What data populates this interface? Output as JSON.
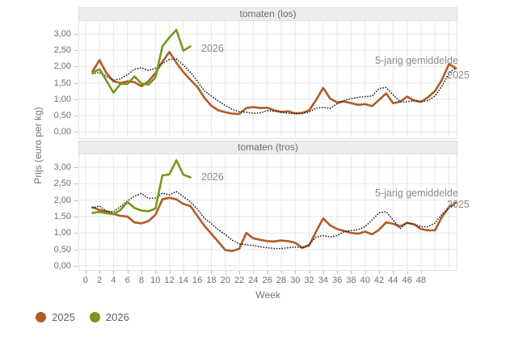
{
  "y_axis_title": "Prijs (euro per kg)",
  "x_axis_title": "Week",
  "legend": {
    "items": [
      {
        "label": "2025",
        "color": "#b05c26"
      },
      {
        "label": "2026",
        "color": "#76981c"
      }
    ]
  },
  "chart_data": [
    {
      "type": "line",
      "title": "tomaten (los)",
      "xlabel": "Week",
      "ylabel": "Prijs (euro per kg)",
      "xlim": [
        -0.9,
        53.1
      ],
      "ylim": [
        -0.17,
        3.4
      ],
      "grid": true,
      "grid_color": "#e8e8e8",
      "x_grid": {
        "start": 0,
        "end": 52,
        "step": 2
      },
      "y_grid": {
        "start": 0,
        "end": 3,
        "step": 0.5
      },
      "y_ticks": [
        {
          "value": 0,
          "label": "0,00"
        },
        {
          "value": 0.5,
          "label": "0,50"
        },
        {
          "value": 1,
          "label": "1,00"
        },
        {
          "value": 1.5,
          "label": "1,50"
        },
        {
          "value": 2,
          "label": "2,00"
        },
        {
          "value": 2.5,
          "label": "2,50"
        },
        {
          "value": 3,
          "label": "3,00"
        }
      ],
      "x_ticks": [],
      "annotations": {
        "avg": "5-jarig gemiddelde",
        "y2025": "2025",
        "y2026": "2026"
      },
      "series": [
        {
          "name": "2025",
          "color": "#b05c26",
          "width": 2.6,
          "x_start": 1,
          "values": [
            1.85,
            2.2,
            1.8,
            1.55,
            1.5,
            1.55,
            1.52,
            1.4,
            1.55,
            1.8,
            2.15,
            2.45,
            2.12,
            1.83,
            1.6,
            1.38,
            1.05,
            0.8,
            0.66,
            0.6,
            0.56,
            0.55,
            0.73,
            0.76,
            0.73,
            0.74,
            0.66,
            0.61,
            0.63,
            0.57,
            0.58,
            0.66,
            0.98,
            1.35,
            1.02,
            0.9,
            0.93,
            0.88,
            0.83,
            0.85,
            0.79,
            0.98,
            1.18,
            0.88,
            0.92,
            1.08,
            0.96,
            0.92,
            1.06,
            1.25,
            1.6,
            2.08,
            1.95
          ]
        },
        {
          "name": "5-jarig gemiddelde",
          "color": "#161616",
          "width": 1.6,
          "dash": "0.2 3.1",
          "x_start": 1,
          "values": [
            1.78,
            1.82,
            1.7,
            1.58,
            1.63,
            1.75,
            1.92,
            1.97,
            1.88,
            1.95,
            2.1,
            2.22,
            2.24,
            2.05,
            1.83,
            1.55,
            1.26,
            1.1,
            0.94,
            0.81,
            0.69,
            0.62,
            0.6,
            0.57,
            0.58,
            0.65,
            0.63,
            0.6,
            0.57,
            0.56,
            0.56,
            0.61,
            0.73,
            0.75,
            0.72,
            0.86,
            0.96,
            1.02,
            1.06,
            1.08,
            1.1,
            1.33,
            1.36,
            1.14,
            0.92,
            0.92,
            0.96,
            0.92,
            0.96,
            1.1,
            1.4,
            1.8,
            1.97
          ]
        },
        {
          "name": "2026",
          "color": "#76981c",
          "width": 2.6,
          "x_start": 1,
          "values": [
            1.82,
            1.92,
            1.57,
            1.2,
            1.47,
            1.47,
            1.7,
            1.48,
            1.45,
            1.67,
            2.62,
            2.9,
            3.13,
            2.49,
            2.62
          ]
        }
      ]
    },
    {
      "type": "line",
      "title": "tomaten (tros)",
      "xlabel": "Week",
      "ylabel": "Prijs (euro per kg)",
      "xlim": [
        -0.9,
        53.1
      ],
      "ylim": [
        -0.1,
        3.39
      ],
      "grid": true,
      "grid_color": "#e8e8e8",
      "x_grid": {
        "start": 0,
        "end": 52,
        "step": 2
      },
      "y_grid": {
        "start": 0,
        "end": 3,
        "step": 0.5
      },
      "y_ticks": [
        {
          "value": 0,
          "label": "0,00"
        },
        {
          "value": 0.5,
          "label": "0,50"
        },
        {
          "value": 1,
          "label": "1,00"
        },
        {
          "value": 1.5,
          "label": "1,50"
        },
        {
          "value": 2,
          "label": "2,00"
        },
        {
          "value": 2.5,
          "label": "2,50"
        },
        {
          "value": 3,
          "label": "3,00"
        }
      ],
      "x_ticks": [
        {
          "value": 0,
          "label": "0"
        },
        {
          "value": 2,
          "label": "2"
        },
        {
          "value": 4,
          "label": "4"
        },
        {
          "value": 6,
          "label": "6"
        },
        {
          "value": 8,
          "label": "8"
        },
        {
          "value": 10,
          "label": "10"
        },
        {
          "value": 12,
          "label": "12"
        },
        {
          "value": 14,
          "label": "14"
        },
        {
          "value": 16,
          "label": "16"
        },
        {
          "value": 18,
          "label": "18"
        },
        {
          "value": 20,
          "label": "20"
        },
        {
          "value": 22,
          "label": "22"
        },
        {
          "value": 24,
          "label": "24"
        },
        {
          "value": 26,
          "label": "26"
        },
        {
          "value": 28,
          "label": "28"
        },
        {
          "value": 30,
          "label": "30"
        },
        {
          "value": 32,
          "label": "32"
        },
        {
          "value": 34,
          "label": "34"
        },
        {
          "value": 36,
          "label": "36"
        },
        {
          "value": 38,
          "label": "38"
        },
        {
          "value": 40,
          "label": "40"
        },
        {
          "value": 42,
          "label": "42"
        },
        {
          "value": 44,
          "label": "44"
        },
        {
          "value": 46,
          "label": "46"
        },
        {
          "value": 48,
          "label": "48"
        }
      ],
      "annotations": {
        "avg": "5-jarig gemiddelde",
        "y2025": "2025",
        "y2026": "2026"
      },
      "series": [
        {
          "name": "2025",
          "color": "#b05c26",
          "width": 2.6,
          "x_start": 1,
          "values": [
            1.78,
            1.7,
            1.66,
            1.58,
            1.52,
            1.5,
            1.32,
            1.29,
            1.36,
            1.55,
            2.02,
            2.07,
            2.02,
            1.88,
            1.82,
            1.52,
            1.22,
            0.98,
            0.73,
            0.48,
            0.45,
            0.52,
            1.0,
            0.84,
            0.79,
            0.75,
            0.74,
            0.77,
            0.75,
            0.7,
            0.55,
            0.62,
            1.05,
            1.44,
            1.23,
            1.12,
            1.06,
            1.0,
            0.98,
            1.04,
            0.96,
            1.1,
            1.32,
            1.28,
            1.2,
            1.31,
            1.26,
            1.12,
            1.08,
            1.08,
            1.49,
            1.78,
            1.92
          ]
        },
        {
          "name": "5-jarig gemiddelde",
          "color": "#161616",
          "width": 1.6,
          "dash": "0.2 3.1",
          "x_start": 1,
          "values": [
            1.76,
            1.82,
            1.66,
            1.64,
            1.8,
            1.97,
            2.12,
            2.2,
            2.05,
            2.06,
            2.21,
            2.16,
            2.26,
            2.1,
            1.95,
            1.72,
            1.45,
            1.28,
            1.1,
            0.95,
            0.78,
            0.67,
            0.64,
            0.62,
            0.58,
            0.55,
            0.53,
            0.53,
            0.55,
            0.57,
            0.55,
            0.65,
            0.88,
            0.92,
            0.88,
            0.92,
            1.04,
            1.07,
            1.1,
            1.19,
            1.4,
            1.61,
            1.65,
            1.4,
            1.13,
            1.3,
            1.27,
            1.19,
            1.19,
            1.3,
            1.57,
            1.77,
            1.85
          ]
        },
        {
          "name": "2026",
          "color": "#76981c",
          "width": 2.6,
          "x_start": 1,
          "values": [
            1.61,
            1.64,
            1.6,
            1.57,
            1.7,
            1.94,
            1.76,
            1.68,
            1.66,
            1.74,
            2.75,
            2.78,
            3.21,
            2.77,
            2.69
          ]
        }
      ]
    }
  ]
}
